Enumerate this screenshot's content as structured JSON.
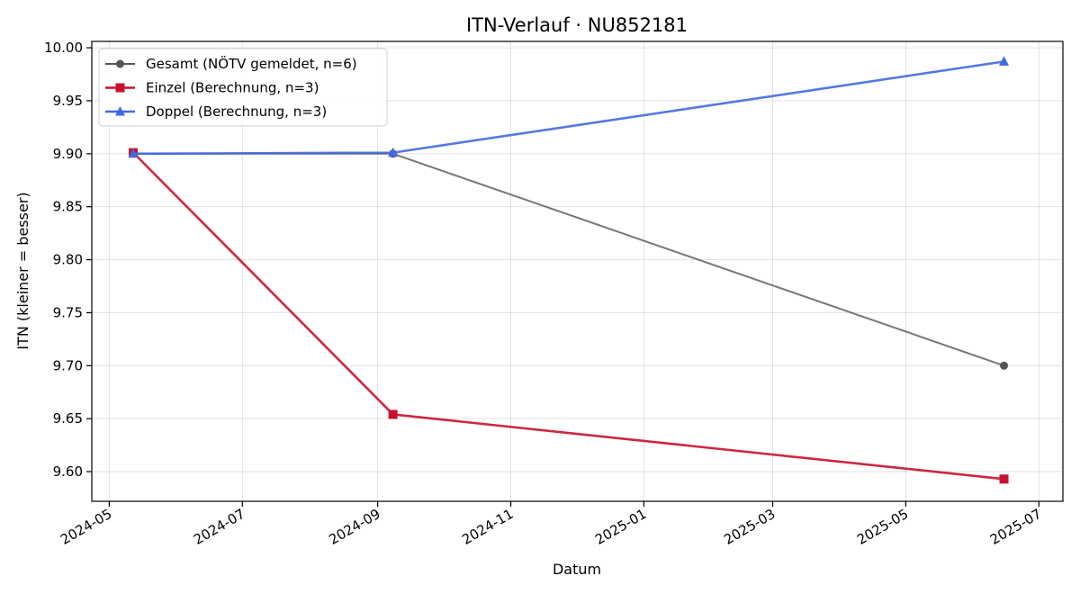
{
  "chart_data": {
    "type": "line",
    "title": "ITN-Verlauf · NU852181",
    "xlabel": "Datum",
    "ylabel": "ITN  (kleiner = besser)",
    "x_type": "date",
    "xlim": [
      "2024-04-23",
      "2025-07-12"
    ],
    "ylim": [
      9.572,
      10.006
    ],
    "grid": true,
    "legend_position": "top-left",
    "x_ticks": [
      "2024-05",
      "2024-07",
      "2024-09",
      "2024-11",
      "2025-01",
      "2025-03",
      "2025-05",
      "2025-07"
    ],
    "y_ticks": [
      "9.60",
      "9.65",
      "9.70",
      "9.75",
      "9.80",
      "9.85",
      "9.90",
      "9.95",
      "10.00"
    ],
    "series": [
      {
        "name": "Gesamt (NÖTV gemeldet, n=6)",
        "color": "#555555",
        "marker": "circle",
        "points": [
          {
            "x": "2024-05-12",
            "y": 9.9
          },
          {
            "x": "2024-09-08",
            "y": 9.9
          },
          {
            "x": "2025-06-15",
            "y": 9.7
          }
        ]
      },
      {
        "name": "Einzel (Berechnung, n=3)",
        "color": "#c8102e",
        "marker": "square",
        "points": [
          {
            "x": "2024-05-12",
            "y": 9.901
          },
          {
            "x": "2024-09-08",
            "y": 9.654
          },
          {
            "x": "2025-06-15",
            "y": 9.593
          }
        ]
      },
      {
        "name": "Doppel (Berechnung, n=3)",
        "color": "#4169e1",
        "marker": "triangle",
        "points": [
          {
            "x": "2024-05-12",
            "y": 9.9
          },
          {
            "x": "2024-09-08",
            "y": 9.901
          },
          {
            "x": "2025-06-15",
            "y": 9.987
          }
        ]
      }
    ]
  }
}
